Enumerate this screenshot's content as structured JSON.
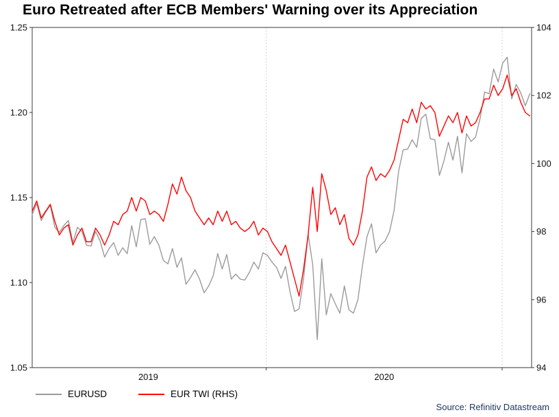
{
  "title": "Euro Retreated after ECB Members' Warning over its Appreciation",
  "source": "Source: Refinitiv Datastream",
  "legend": [
    {
      "label": "EURUSD",
      "color": "#9a9a9a"
    },
    {
      "label": "EUR TWI (RHS)",
      "color": "#ff0000"
    }
  ],
  "chart_data": {
    "type": "line",
    "title": "Euro Retreated after ECB Members' Warning over its Appreciation",
    "grid": "vertical-dashed-at-year-boundaries",
    "legend_position": "bottom-left",
    "x_range": [
      2019.008,
      2021.125
    ],
    "x_start": 2019.008,
    "x_step": 0.019178,
    "x_axis": {
      "labels": [
        "2019",
        "2020"
      ],
      "label_positions": [
        2019.5,
        2020.5
      ],
      "year_boundaries": [
        2020.0,
        2021.0
      ]
    },
    "y_left": {
      "series": "EURUSD",
      "range": [
        1.05,
        1.25
      ],
      "ticks": [
        1.25,
        1.2,
        1.15,
        1.1,
        1.05
      ],
      "tick_labels": [
        "1.25",
        "1.20",
        "1.15",
        "1.10",
        "1.05"
      ]
    },
    "y_right": {
      "series": "EUR TWI (RHS)",
      "range": [
        94,
        104
      ],
      "ticks": [
        104,
        102,
        100,
        98,
        96,
        94
      ],
      "tick_labels": [
        "104",
        "102",
        "100",
        "98",
        "96",
        "94"
      ]
    },
    "series": [
      {
        "name": "EURUSD",
        "axis": "left",
        "color": "#9a9a9a",
        "values": [
          1.14,
          1.1465,
          1.1365,
          1.1415,
          1.1455,
          1.1325,
          1.1295,
          1.1335,
          1.1365,
          1.1235,
          1.1325,
          1.13,
          1.122,
          1.1215,
          1.13,
          1.1245,
          1.115,
          1.12,
          1.1235,
          1.116,
          1.1205,
          1.117,
          1.1335,
          1.121,
          1.137,
          1.1375,
          1.1225,
          1.127,
          1.122,
          1.113,
          1.111,
          1.12,
          1.109,
          1.1145,
          1.099,
          1.103,
          1.1075,
          1.102,
          1.094,
          1.098,
          1.104,
          1.117,
          1.108,
          1.1165,
          1.102,
          1.105,
          1.102,
          1.1015,
          1.106,
          1.112,
          1.108,
          1.1175,
          1.116,
          1.112,
          1.109,
          1.1025,
          1.1095,
          1.0945,
          1.083,
          1.0845,
          1.1025,
          1.1285,
          1.1105,
          1.0665,
          1.114,
          1.081,
          1.0935,
          1.0875,
          1.082,
          1.098,
          1.084,
          1.082,
          1.09,
          1.11,
          1.127,
          1.1345,
          1.1175,
          1.122,
          1.1245,
          1.13,
          1.1425,
          1.1655,
          1.178,
          1.1785,
          1.184,
          1.1795,
          1.1965,
          1.199,
          1.1845,
          1.184,
          1.163,
          1.1715,
          1.1825,
          1.172,
          1.186,
          1.1645,
          1.1875,
          1.183,
          1.1855,
          1.1965,
          1.212,
          1.211,
          1.2255,
          1.218,
          1.229,
          1.2325,
          1.208,
          1.2165,
          1.2115,
          1.204,
          1.211
        ]
      },
      {
        "name": "EUR TWI (RHS)",
        "axis": "right",
        "color": "#ff0000",
        "values": [
          98.6,
          98.9,
          98.4,
          98.6,
          98.8,
          98.3,
          97.9,
          98.1,
          98.2,
          97.6,
          97.9,
          98.1,
          97.7,
          97.7,
          98.1,
          97.9,
          97.6,
          97.9,
          98.3,
          98.2,
          98.5,
          98.6,
          99.0,
          98.6,
          99.0,
          98.9,
          98.5,
          98.6,
          98.5,
          98.3,
          98.8,
          99.4,
          99.1,
          99.6,
          99.2,
          99.0,
          98.6,
          98.4,
          98.2,
          98.4,
          98.2,
          98.6,
          98.3,
          98.6,
          98.2,
          98.3,
          98.1,
          98.0,
          98.1,
          98.3,
          97.9,
          98.1,
          98.0,
          97.7,
          97.5,
          97.3,
          97.6,
          97.1,
          96.6,
          96.1,
          96.9,
          97.9,
          99.3,
          98.0,
          99.7,
          99.2,
          98.5,
          98.7,
          98.2,
          98.5,
          97.8,
          97.6,
          97.9,
          98.6,
          99.6,
          99.9,
          99.5,
          99.7,
          99.6,
          99.8,
          100.1,
          100.7,
          101.3,
          101.2,
          101.6,
          101.2,
          101.8,
          101.6,
          101.7,
          101.5,
          100.8,
          101.1,
          101.4,
          101.2,
          101.5,
          100.9,
          101.4,
          101.1,
          101.2,
          101.5,
          101.9,
          101.9,
          102.3,
          102.0,
          102.2,
          102.6,
          102.0,
          102.2,
          101.8,
          101.5,
          101.4
        ]
      }
    ]
  }
}
